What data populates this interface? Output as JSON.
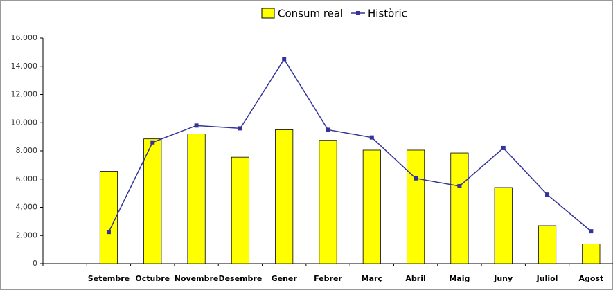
{
  "chart_data": {
    "type": "combo",
    "categories": [
      null,
      "Setembre",
      "Octubre",
      "Novembre",
      "Desembre",
      "Gener",
      "Febrer",
      "Març",
      "Abril",
      "Maig",
      "Juny",
      "Juliol",
      "Agost"
    ],
    "series": [
      {
        "name": "Consum real",
        "type": "bar",
        "color": "#ffff00",
        "values": [
          null,
          6550,
          8850,
          9200,
          7550,
          9500,
          8750,
          8050,
          8050,
          7850,
          5400,
          2700,
          1400
        ]
      },
      {
        "name": "Històric",
        "type": "line",
        "color": "#333399",
        "values": [
          null,
          2250,
          8600,
          9800,
          9600,
          14500,
          9500,
          8950,
          6050,
          5500,
          8200,
          4900,
          2300
        ]
      }
    ],
    "ylim": [
      0,
      16000
    ],
    "yticks": [
      0,
      {
        "value": 2000,
        "label": "2.000"
      },
      {
        "value": 4000,
        "label": "4.000"
      },
      {
        "value": 6000,
        "label": "6.000"
      },
      {
        "value": 8000,
        "label": "8.000"
      },
      {
        "value": 10000,
        "label": "10.000"
      },
      {
        "value": 12000,
        "label": "12.000"
      },
      {
        "value": 14000,
        "label": "14.000"
      },
      {
        "value": 16000,
        "label": "16.000"
      }
    ],
    "legend": "top"
  }
}
